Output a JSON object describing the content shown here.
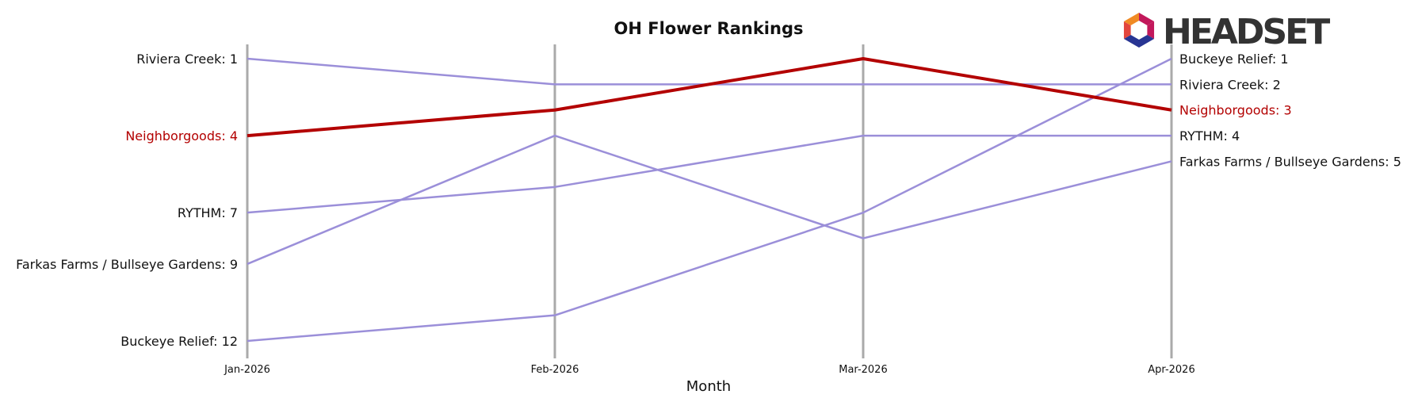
{
  "chart_data": {
    "type": "line",
    "title": "OH Flower Rankings",
    "xlabel": "Month",
    "ylabel": "",
    "categories": [
      "Jan-2026",
      "Feb-2026",
      "Mar-2026",
      "Apr-2026"
    ],
    "ylim": [
      12,
      1
    ],
    "y_inverted": true,
    "grid": "vertical lines at each month",
    "legend": "none; series labelled at left (first month) and right (last month)",
    "highlight_series": "Neighborgoods",
    "colors": {
      "highlight": "#b30000",
      "other": "#9b8fd9",
      "gridline": "#aaaaaa"
    },
    "series": [
      {
        "name": "Riviera Creek",
        "values": [
          1,
          2,
          2,
          2
        ],
        "start_label": "Riviera Creek: 1",
        "end_label": "Riviera Creek: 2",
        "highlight": false
      },
      {
        "name": "Neighborgoods",
        "values": [
          4,
          3,
          1,
          3
        ],
        "start_label": "Neighborgoods: 4",
        "end_label": "Neighborgoods: 3",
        "highlight": true
      },
      {
        "name": "RYTHM",
        "values": [
          7,
          6,
          4,
          4
        ],
        "start_label": "RYTHM: 7",
        "end_label": "RYTHM: 4",
        "highlight": false
      },
      {
        "name": "Farkas Farms / Bullseye Gardens",
        "values": [
          9,
          4,
          8,
          5
        ],
        "start_label": "Farkas Farms / Bullseye Gardens: 9",
        "end_label": "Farkas Farms / Bullseye Gardens: 5",
        "highlight": false
      },
      {
        "name": "Buckeye Relief",
        "values": [
          12,
          11,
          7,
          1
        ],
        "start_label": "Buckeye Relief: 12",
        "end_label": "Buckeye Relief: 1",
        "highlight": false
      }
    ]
  },
  "logo": {
    "text": "HEADSET",
    "colors": [
      "#e2453c",
      "#f08a24",
      "#c2185b",
      "#7b1fa2",
      "#283593"
    ]
  }
}
